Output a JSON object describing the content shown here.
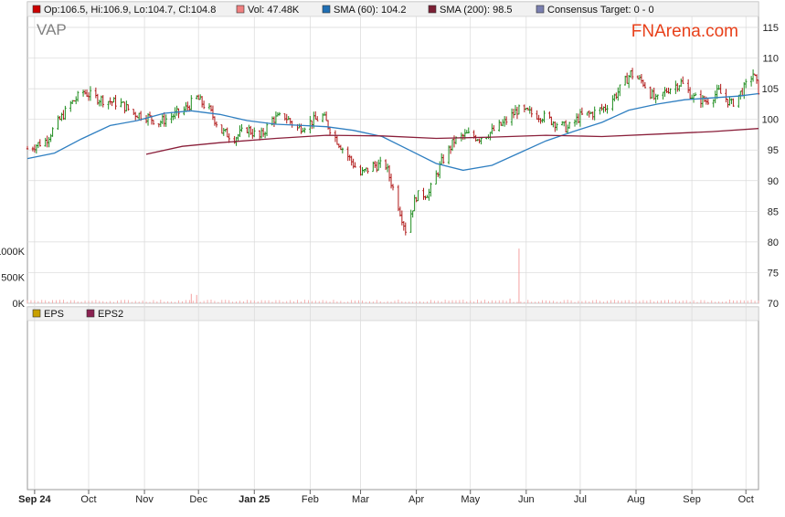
{
  "legend": [
    {
      "label": "Op:106.5, Hi:106.9, Lo:104.7, Cl:104.8",
      "color": "#cc0000"
    },
    {
      "label": "Vol: 47.48K",
      "color": "#f08080"
    },
    {
      "label": "SMA (60): 104.2",
      "color": "#1f6fb4"
    },
    {
      "label": "SMA (200): 98.5",
      "color": "#7b1f34"
    },
    {
      "label": "Consensus Target: 0 - 0",
      "color": "#7a7fb0"
    }
  ],
  "ticker": "VAP",
  "brand": {
    "text": "FNArena.com",
    "color": "#e8401a"
  },
  "eps_legend": [
    {
      "label": "EPS",
      "color": "#c8a000"
    },
    {
      "label": "EPS2",
      "color": "#8b2252"
    }
  ],
  "colors": {
    "up": "#1e8c1e",
    "down": "#b01818",
    "sma60": "#2f7fc1",
    "sma200": "#8a1f3a",
    "volume": "#f4a0a0",
    "grid": "#d9d9d9"
  },
  "chart_data": {
    "type": "line",
    "title": "VAP",
    "price_axis": {
      "min": 70,
      "max": 115,
      "ticks": [
        115,
        110,
        105,
        100,
        95,
        90,
        85,
        80,
        75,
        70
      ],
      "side": "right"
    },
    "volume_axis": {
      "ticks": [
        "1000K",
        "500K",
        "0K"
      ],
      "tick_values": [
        1000,
        500,
        0
      ],
      "unit": "K"
    },
    "x_axis": {
      "range": [
        "2024-09-20",
        "2025-10-31"
      ],
      "ticks": [
        {
          "date": "2024-09-24",
          "label": "Sep 24",
          "bold": true
        },
        {
          "date": "2024-10-24",
          "label": "Oct",
          "bold": false
        },
        {
          "date": "2024-11-24",
          "label": "Nov",
          "bold": false
        },
        {
          "date": "2024-12-24",
          "label": "Dec",
          "bold": false
        },
        {
          "date": "2025-01-24",
          "label": "Jan 25",
          "bold": true
        },
        {
          "date": "2025-02-24",
          "label": "Feb",
          "bold": false
        },
        {
          "date": "2025-03-24",
          "label": "Mar",
          "bold": false
        },
        {
          "date": "2025-04-24",
          "label": "Apr",
          "bold": false
        },
        {
          "date": "2025-05-24",
          "label": "May",
          "bold": false
        },
        {
          "date": "2025-06-24",
          "label": "Jun",
          "bold": false
        },
        {
          "date": "2025-07-24",
          "label": "Jul",
          "bold": false
        },
        {
          "date": "2025-08-24",
          "label": "Aug",
          "bold": false
        },
        {
          "date": "2025-09-24",
          "label": "Sep",
          "bold": false
        },
        {
          "date": "2025-10-24",
          "label": "Oct",
          "bold": false
        }
      ]
    },
    "series": [
      {
        "name": "Close",
        "kind": "price",
        "points": [
          [
            "2024-09-20",
            95.2
          ],
          [
            "2024-09-30",
            96.5
          ],
          [
            "2024-10-07",
            99.5
          ],
          [
            "2024-10-14",
            102.5
          ],
          [
            "2024-10-21",
            104.5
          ],
          [
            "2024-10-28",
            103.5
          ],
          [
            "2024-11-04",
            103
          ],
          [
            "2024-11-11",
            102.5
          ],
          [
            "2024-11-18",
            101
          ],
          [
            "2024-11-25",
            100.5
          ],
          [
            "2024-12-02",
            99.5
          ],
          [
            "2024-12-09",
            100.5
          ],
          [
            "2024-12-16",
            101.5
          ],
          [
            "2024-12-23",
            103.5
          ],
          [
            "2024-12-30",
            101.5
          ],
          [
            "2025-01-06",
            98
          ],
          [
            "2025-01-13",
            97
          ],
          [
            "2025-01-20",
            98.5
          ],
          [
            "2025-01-27",
            97
          ],
          [
            "2025-02-03",
            100
          ],
          [
            "2025-02-10",
            100.5
          ],
          [
            "2025-02-17",
            98.5
          ],
          [
            "2025-02-24",
            99.5
          ],
          [
            "2025-03-03",
            100.5
          ],
          [
            "2025-03-10",
            97
          ],
          [
            "2025-03-17",
            94
          ],
          [
            "2025-03-24",
            91
          ],
          [
            "2025-03-31",
            92.5
          ],
          [
            "2025-04-07",
            92.5
          ],
          [
            "2025-04-14",
            86
          ],
          [
            "2025-04-18",
            82
          ],
          [
            "2025-04-24",
            87.5
          ],
          [
            "2025-05-01",
            88
          ],
          [
            "2025-05-08",
            93
          ],
          [
            "2025-05-15",
            96.5
          ],
          [
            "2025-05-22",
            97.5
          ],
          [
            "2025-05-29",
            97
          ],
          [
            "2025-06-05",
            98
          ],
          [
            "2025-06-12",
            99.5
          ],
          [
            "2025-06-19",
            101.5
          ],
          [
            "2025-06-26",
            101
          ],
          [
            "2025-07-03",
            100.5
          ],
          [
            "2025-07-10",
            99.5
          ],
          [
            "2025-07-17",
            98.5
          ],
          [
            "2025-07-24",
            100.5
          ],
          [
            "2025-07-31",
            101
          ],
          [
            "2025-08-07",
            102
          ],
          [
            "2025-08-14",
            104.5
          ],
          [
            "2025-08-21",
            107.5
          ],
          [
            "2025-08-28",
            106
          ],
          [
            "2025-09-04",
            103
          ],
          [
            "2025-09-11",
            105
          ],
          [
            "2025-09-18",
            106
          ],
          [
            "2025-09-25",
            103.5
          ],
          [
            "2025-10-02",
            103
          ],
          [
            "2025-10-09",
            104.5
          ],
          [
            "2025-10-16",
            102.5
          ],
          [
            "2025-10-23",
            105
          ],
          [
            "2025-10-28",
            107.5
          ],
          [
            "2025-10-31",
            104.8
          ]
        ]
      },
      {
        "name": "SMA (60)",
        "kind": "sma60",
        "points": [
          [
            "2024-09-20",
            93.6
          ],
          [
            "2024-10-05",
            94.5
          ],
          [
            "2024-10-20",
            96.8
          ],
          [
            "2024-11-05",
            99
          ],
          [
            "2024-11-20",
            99.8
          ],
          [
            "2024-12-05",
            101
          ],
          [
            "2024-12-20",
            101.4
          ],
          [
            "2025-01-05",
            100.8
          ],
          [
            "2025-01-20",
            99.8
          ],
          [
            "2025-02-05",
            99.2
          ],
          [
            "2025-02-20",
            99
          ],
          [
            "2025-03-05",
            98.8
          ],
          [
            "2025-03-20",
            98.2
          ],
          [
            "2025-04-05",
            97.2
          ],
          [
            "2025-04-20",
            95
          ],
          [
            "2025-05-05",
            92.8
          ],
          [
            "2025-05-20",
            91.7
          ],
          [
            "2025-06-05",
            92.5
          ],
          [
            "2025-06-20",
            94.5
          ],
          [
            "2025-07-05",
            96.5
          ],
          [
            "2025-07-20",
            98
          ],
          [
            "2025-08-05",
            99.5
          ],
          [
            "2025-08-20",
            101.5
          ],
          [
            "2025-09-05",
            102.5
          ],
          [
            "2025-09-20",
            103.2
          ],
          [
            "2025-10-05",
            103.5
          ],
          [
            "2025-10-20",
            103.8
          ],
          [
            "2025-10-31",
            104.2
          ]
        ]
      },
      {
        "name": "SMA (200)",
        "kind": "sma200",
        "points": [
          [
            "2024-11-25",
            94.3
          ],
          [
            "2024-12-15",
            95.6
          ],
          [
            "2025-01-05",
            96.2
          ],
          [
            "2025-02-05",
            96.9
          ],
          [
            "2025-03-05",
            97.4
          ],
          [
            "2025-04-05",
            97.3
          ],
          [
            "2025-05-05",
            96.9
          ],
          [
            "2025-06-05",
            97.1
          ],
          [
            "2025-07-05",
            97.4
          ],
          [
            "2025-08-05",
            97.2
          ],
          [
            "2025-09-05",
            97.6
          ],
          [
            "2025-10-05",
            98
          ],
          [
            "2025-10-31",
            98.5
          ]
        ]
      },
      {
        "name": "Volume",
        "kind": "volume",
        "unit": "K",
        "spikes": [
          [
            "2024-12-20",
            180
          ],
          [
            "2024-12-23",
            160
          ],
          [
            "2025-06-15",
            90
          ],
          [
            "2025-06-20",
            1050
          ]
        ],
        "typical": 47
      }
    ]
  }
}
